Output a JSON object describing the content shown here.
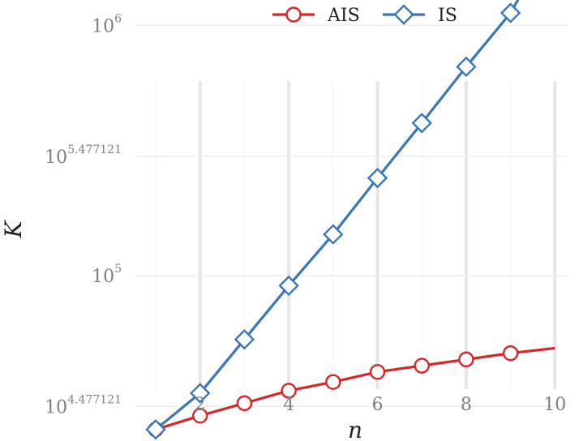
{
  "chart_data": {
    "type": "line",
    "title": "",
    "xlabel": "n",
    "ylabel": "K",
    "y_scale": "log10",
    "xlim": [
      1,
      10
    ],
    "ylim_log10": [
      4.35,
      6.4
    ],
    "x_ticks": [
      2,
      4,
      6,
      8,
      10
    ],
    "y_ticks": [
      {
        "base": "10",
        "exp": "4.477121",
        "log10": 4.477121
      },
      {
        "base": "10",
        "exp": "5",
        "log10": 5
      },
      {
        "base": "10",
        "exp": "5.477121",
        "log10": 5.477121
      },
      {
        "base": "10",
        "exp": "6",
        "log10": 6
      }
    ],
    "grid": true,
    "legend_position": "top",
    "series": [
      {
        "name": "AIS",
        "color": "#d62728",
        "marker": "circle",
        "x": [
          1,
          2,
          3,
          4,
          5,
          6,
          7,
          8,
          9,
          10
        ],
        "log10_y": [
          4.385,
          4.44,
          4.49,
          4.54,
          4.575,
          4.615,
          4.64,
          4.665,
          4.69,
          4.71
        ],
        "marker_x": [
          1,
          2,
          3,
          4,
          5,
          6,
          7,
          8,
          9
        ]
      },
      {
        "name": "IS",
        "color": "#3a77b4",
        "marker": "diamond",
        "x": [
          1,
          2,
          3,
          4,
          5,
          6,
          7,
          8,
          9,
          10
        ],
        "log10_y": [
          4.385,
          4.53,
          4.745,
          4.96,
          5.165,
          5.39,
          5.61,
          5.835,
          6.05,
          6.365
        ],
        "marker_x": [
          1,
          2,
          3,
          4,
          5,
          6,
          7,
          8,
          9
        ]
      }
    ]
  }
}
